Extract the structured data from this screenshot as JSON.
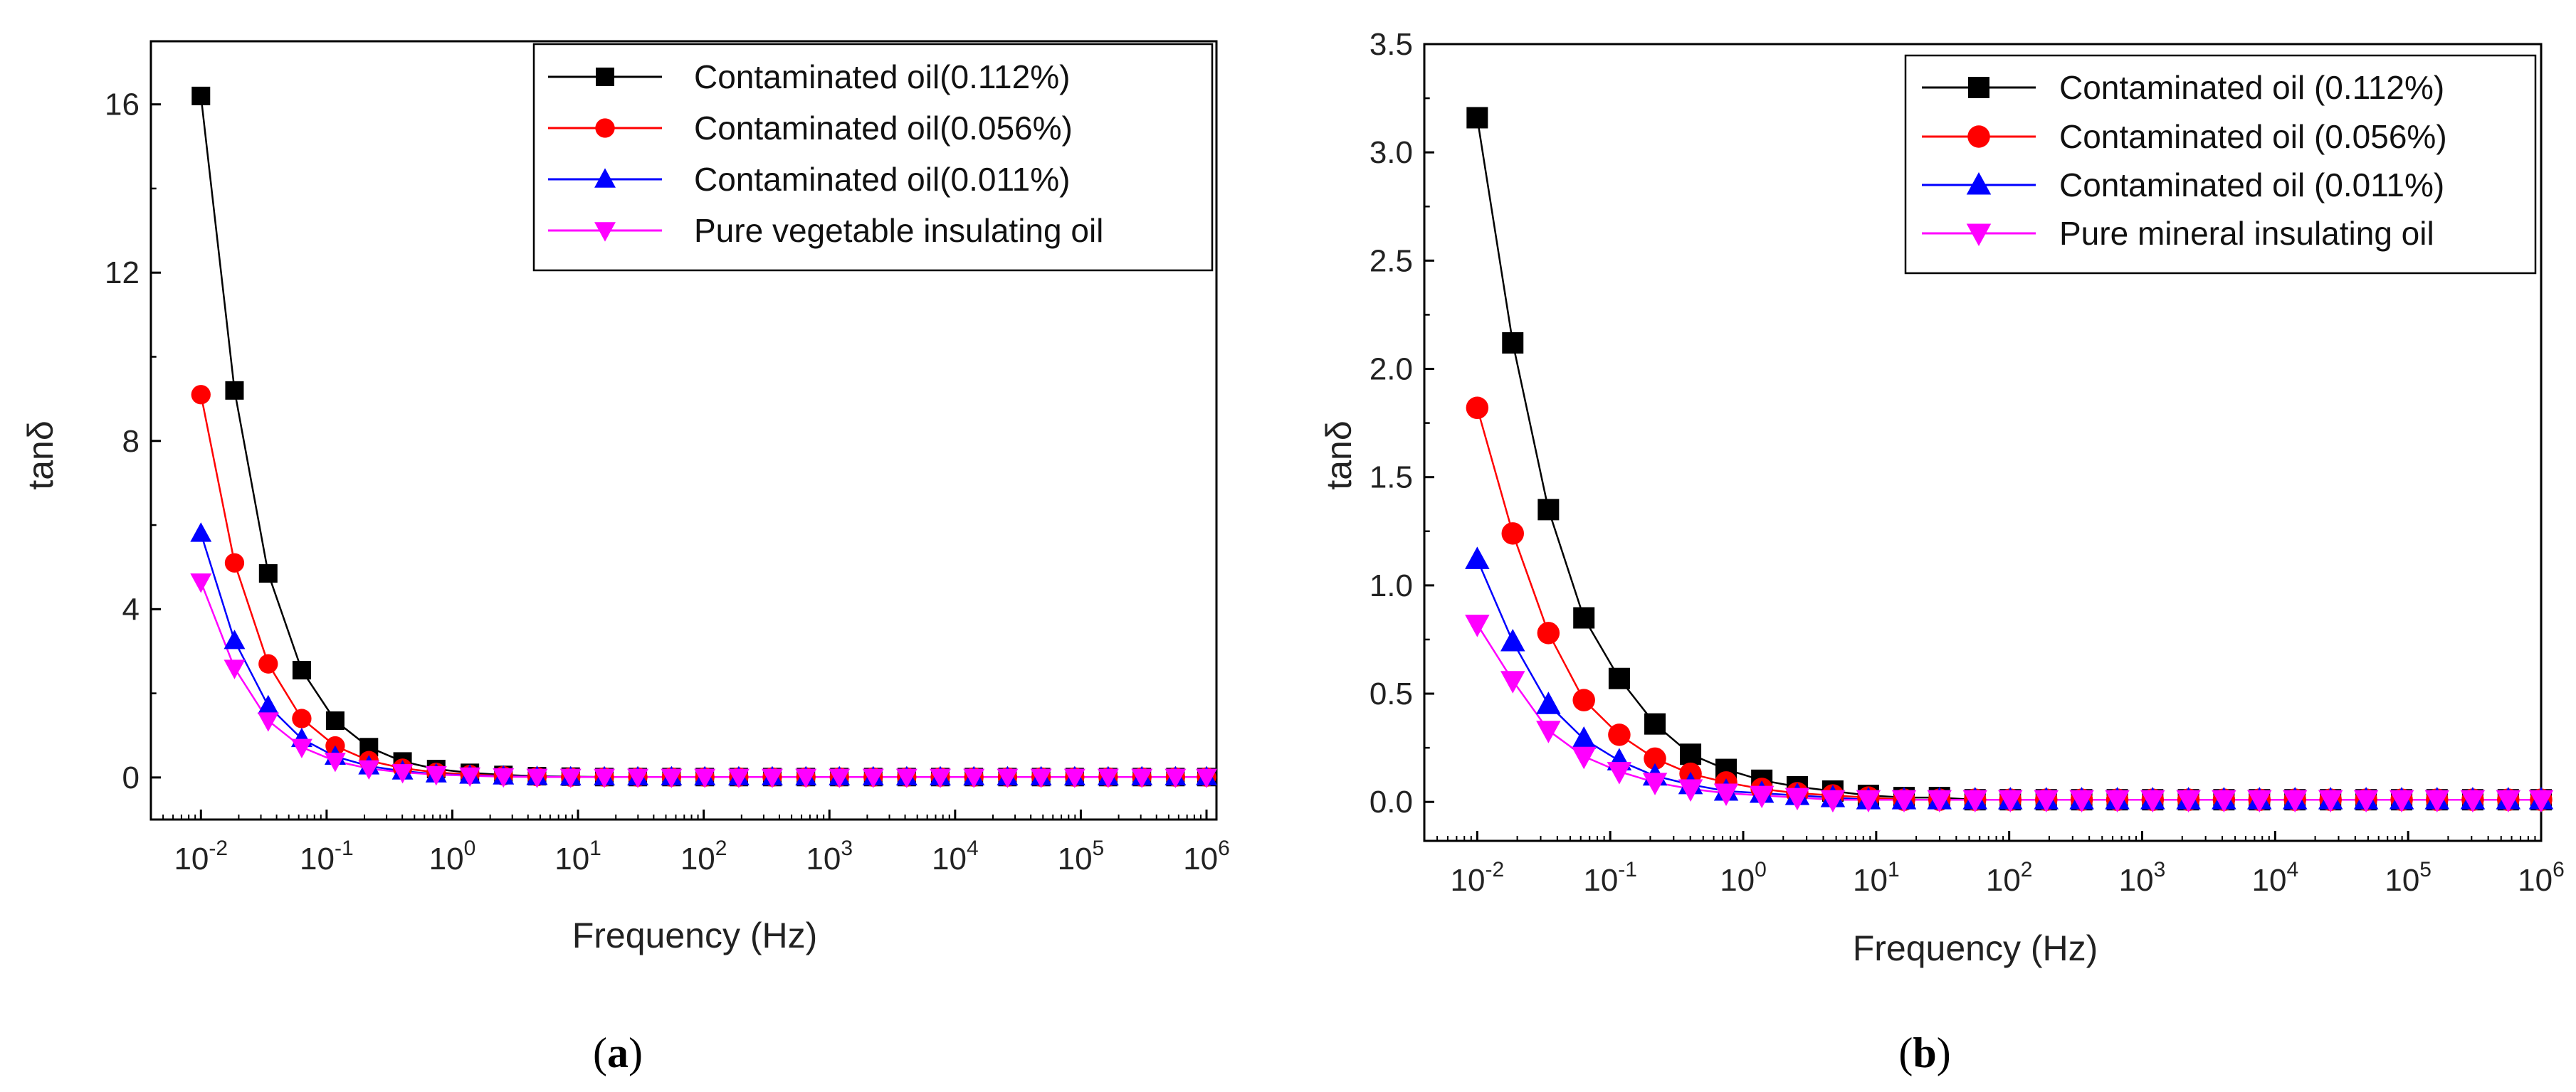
{
  "figure_captions": [
    "a",
    "b"
  ],
  "chart_data": [
    {
      "type": "line",
      "panel": "a",
      "caption": "a",
      "xlabel": "Frequency (Hz)",
      "ylabel": "tanδ",
      "xscale": "log",
      "xlim": [
        0.004,
        1200000
      ],
      "ylim": [
        -1,
        17.5
      ],
      "yticks": [
        0,
        4,
        8,
        12,
        16
      ],
      "ytick_labels": [
        "0",
        "4",
        "8",
        "12",
        "16"
      ],
      "xtick_exponents": [
        "-2",
        "-1",
        "0",
        "1",
        "2",
        "3",
        "4",
        "5",
        "6"
      ],
      "legend_position": "top-right",
      "x": [
        0.01,
        0.0185,
        0.0343,
        0.0634,
        0.117,
        0.217,
        0.402,
        0.744,
        1.38,
        2.55,
        4.72,
        8.74,
        16.2,
        29.9,
        55.4,
        102,
        190,
        351,
        650,
        1200,
        2230,
        4120,
        7620,
        14100,
        26100,
        48300,
        89400,
        165000,
        306000,
        566000,
        1000000
      ],
      "series": [
        {
          "name": "Contaminated oil(0.112%)",
          "color": "#000000",
          "marker": "square",
          "values": [
            16.2,
            9.2,
            4.85,
            2.55,
            1.35,
            0.72,
            0.38,
            0.2,
            0.11,
            0.06,
            0.03,
            0.02,
            0.01,
            0.01,
            0.01,
            0.01,
            0.01,
            0.01,
            0.01,
            0.01,
            0.01,
            0.01,
            0.01,
            0.01,
            0.01,
            0.01,
            0.01,
            0.01,
            0.01,
            0.01,
            0.01
          ]
        },
        {
          "name": "Contaminated oil(0.056%)",
          "color": "#ff0000",
          "marker": "circle",
          "values": [
            9.1,
            5.1,
            2.7,
            1.4,
            0.75,
            0.4,
            0.22,
            0.12,
            0.07,
            0.04,
            0.02,
            0.01,
            0.01,
            0.01,
            0.01,
            0.01,
            0.01,
            0.01,
            0.01,
            0.01,
            0.01,
            0.01,
            0.01,
            0.01,
            0.01,
            0.01,
            0.01,
            0.01,
            0.01,
            0.01,
            0.01
          ]
        },
        {
          "name": "Contaminated oil(0.011%)",
          "color": "#0000ff",
          "marker": "triangle-up",
          "values": [
            5.8,
            3.25,
            1.7,
            0.92,
            0.5,
            0.27,
            0.15,
            0.08,
            0.05,
            0.03,
            0.02,
            0.01,
            0.01,
            0.01,
            0.01,
            0.01,
            0.01,
            0.01,
            0.01,
            0.01,
            0.01,
            0.01,
            0.01,
            0.01,
            0.01,
            0.01,
            0.01,
            0.01,
            0.01,
            0.01,
            0.01
          ]
        },
        {
          "name": "Pure vegetable insulating oil",
          "color": "#ff00ff",
          "marker": "triangle-down",
          "values": [
            4.65,
            2.6,
            1.35,
            0.72,
            0.39,
            0.21,
            0.12,
            0.07,
            0.04,
            0.02,
            0.01,
            0.01,
            0.01,
            0.01,
            0.01,
            0.01,
            0.01,
            0.01,
            0.01,
            0.01,
            0.01,
            0.01,
            0.01,
            0.01,
            0.01,
            0.01,
            0.01,
            0.01,
            0.01,
            0.01,
            0.01
          ]
        }
      ]
    },
    {
      "type": "line",
      "panel": "b",
      "caption": "b",
      "xlabel": "Frequency (Hz)",
      "ylabel": "tanδ",
      "xscale": "log",
      "xlim": [
        0.004,
        1000000
      ],
      "ylim": [
        -0.18,
        3.5
      ],
      "yticks": [
        0.0,
        0.5,
        1.0,
        1.5,
        2.0,
        2.5,
        3.0,
        3.5
      ],
      "ytick_labels": [
        "0.0",
        "0.5",
        "1.0",
        "1.5",
        "2.0",
        "2.5",
        "3.0",
        "3.5"
      ],
      "xtick_exponents": [
        "-2",
        "-1",
        "0",
        "1",
        "2",
        "3",
        "4",
        "5",
        "6"
      ],
      "legend_position": "top-right",
      "x": [
        0.01,
        0.0185,
        0.0343,
        0.0634,
        0.117,
        0.217,
        0.402,
        0.744,
        1.38,
        2.55,
        4.72,
        8.74,
        16.2,
        29.9,
        55.4,
        102,
        190,
        351,
        650,
        1200,
        2230,
        4120,
        7620,
        14100,
        26100,
        48300,
        89400,
        165000,
        306000,
        566000,
        1000000
      ],
      "series": [
        {
          "name": "Contaminated oil (0.112%)",
          "color": "#000000",
          "marker": "square",
          "values": [
            3.16,
            2.12,
            1.35,
            0.85,
            0.57,
            0.36,
            0.22,
            0.15,
            0.1,
            0.07,
            0.05,
            0.03,
            0.02,
            0.02,
            0.01,
            0.01,
            0.01,
            0.01,
            0.01,
            0.01,
            0.01,
            0.01,
            0.01,
            0.01,
            0.01,
            0.01,
            0.01,
            0.01,
            0.01,
            0.01,
            0.01
          ]
        },
        {
          "name": "Contaminated oil (0.056%)",
          "color": "#ff0000",
          "marker": "circle",
          "values": [
            1.82,
            1.24,
            0.78,
            0.47,
            0.31,
            0.2,
            0.13,
            0.09,
            0.06,
            0.04,
            0.03,
            0.02,
            0.01,
            0.01,
            0.01,
            0.01,
            0.01,
            0.01,
            0.01,
            0.01,
            0.01,
            0.01,
            0.01,
            0.01,
            0.01,
            0.01,
            0.01,
            0.01,
            0.01,
            0.01,
            0.01
          ]
        },
        {
          "name": "Contaminated oil (0.011%)",
          "color": "#0000ff",
          "marker": "triangle-up",
          "values": [
            1.12,
            0.74,
            0.45,
            0.29,
            0.19,
            0.12,
            0.08,
            0.05,
            0.04,
            0.03,
            0.02,
            0.01,
            0.01,
            0.01,
            0.01,
            0.01,
            0.01,
            0.01,
            0.01,
            0.01,
            0.01,
            0.01,
            0.01,
            0.01,
            0.01,
            0.01,
            0.01,
            0.01,
            0.01,
            0.01,
            0.01
          ]
        },
        {
          "name": "Pure mineral insulating oil",
          "color": "#ff00ff",
          "marker": "triangle-down",
          "values": [
            0.82,
            0.56,
            0.33,
            0.21,
            0.14,
            0.09,
            0.06,
            0.04,
            0.03,
            0.02,
            0.01,
            0.01,
            0.01,
            0.01,
            0.01,
            0.01,
            0.01,
            0.01,
            0.01,
            0.01,
            0.01,
            0.01,
            0.01,
            0.01,
            0.01,
            0.01,
            0.01,
            0.01,
            0.01,
            0.01,
            0.01
          ]
        }
      ]
    }
  ]
}
